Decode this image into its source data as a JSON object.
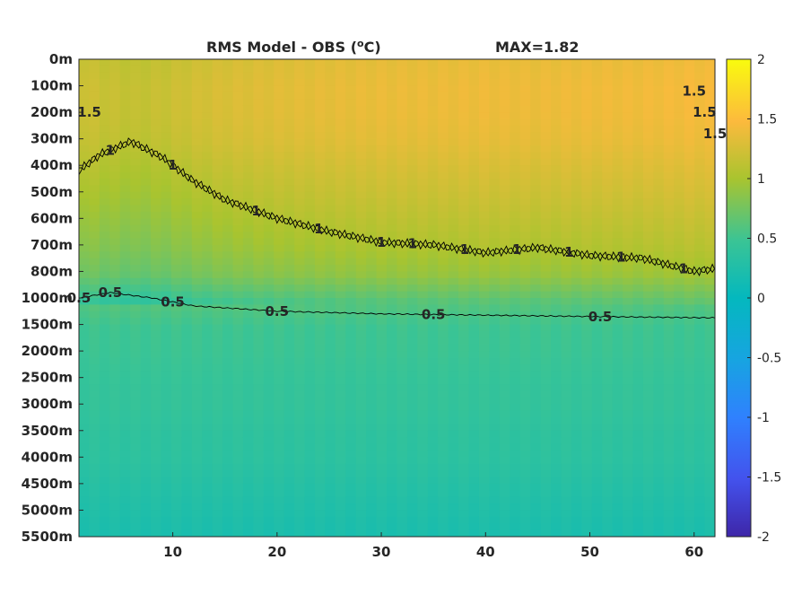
{
  "chart_data": {
    "type": "heatmap",
    "title": "RMS Model - OBS (",
    "title_unit_sup": "o",
    "title_unit_end": "C)",
    "max_label": "MAX=1.82",
    "xlabel": "",
    "ylabel": "",
    "xlim": [
      1,
      62
    ],
    "x_ticks": [
      10,
      20,
      30,
      40,
      50,
      60
    ],
    "y_tick_labels": [
      "0m",
      "100m",
      "200m",
      "300m",
      "400m",
      "500m",
      "600m",
      "700m",
      "800m",
      "1000m",
      "1500m",
      "2000m",
      "2500m",
      "3000m",
      "3500m",
      "4000m",
      "4500m",
      "5000m",
      "5500m"
    ],
    "colorbar": {
      "range": [
        -2,
        2
      ],
      "ticks": [
        "2",
        "1.5",
        "1",
        "0.5",
        "0",
        "-0.5",
        "-1",
        "-1.5",
        "-2"
      ],
      "colormap": "parula"
    },
    "contour_levels": [
      0.5,
      1,
      1.5
    ],
    "contour_labels": [
      {
        "text": "1.5",
        "x": 2,
        "level": 1.5
      },
      {
        "text": "0.5",
        "x": 1,
        "level": 0.5
      },
      {
        "text": "1",
        "x": 4,
        "level": 1
      },
      {
        "text": "1",
        "x": 10,
        "level": 1
      },
      {
        "text": "1",
        "x": 18,
        "level": 1
      },
      {
        "text": "1",
        "x": 24,
        "level": 1
      },
      {
        "text": "1",
        "x": 30,
        "level": 1
      },
      {
        "text": "1",
        "x": 33,
        "level": 1
      },
      {
        "text": "1",
        "x": 38,
        "level": 1
      },
      {
        "text": "1",
        "x": 43,
        "level": 1
      },
      {
        "text": "1",
        "x": 48,
        "level": 1
      },
      {
        "text": "1",
        "x": 53,
        "level": 1
      },
      {
        "text": "1",
        "x": 59,
        "level": 1
      },
      {
        "text": "0.5",
        "x": 4,
        "level": 0.5
      },
      {
        "text": "0.5",
        "x": 10,
        "level": 0.5
      },
      {
        "text": "0.5",
        "x": 20,
        "level": 0.5
      },
      {
        "text": "0.5",
        "x": 35,
        "level": 0.5
      },
      {
        "text": "0.5",
        "x": 51,
        "level": 0.5
      },
      {
        "text": "1.5",
        "x": 60,
        "level": 1.5
      },
      {
        "text": "1.5",
        "x": 61,
        "level": 1.5
      },
      {
        "text": "1.5",
        "x": 62,
        "level": 1.5
      }
    ],
    "depth_profile": {
      "depth_index": [
        0,
        1,
        2,
        3,
        4,
        5,
        6,
        7,
        8,
        9,
        10,
        11,
        12,
        13,
        14,
        15,
        16,
        17,
        18
      ],
      "rms_c": [
        1.35,
        1.38,
        1.37,
        1.33,
        1.25,
        1.18,
        1.1,
        1.02,
        0.9,
        0.62,
        0.5,
        0.48,
        0.44,
        0.42,
        0.38,
        0.36,
        0.3,
        0.25,
        0.2
      ]
    },
    "contour_1_depth_index": [
      {
        "x": 1,
        "d": 4.2
      },
      {
        "x": 3,
        "d": 3.6
      },
      {
        "x": 6,
        "d": 3.1
      },
      {
        "x": 9,
        "d": 3.7
      },
      {
        "x": 12,
        "d": 4.6
      },
      {
        "x": 15,
        "d": 5.3
      },
      {
        "x": 20,
        "d": 6.0
      },
      {
        "x": 25,
        "d": 6.5
      },
      {
        "x": 30,
        "d": 6.9
      },
      {
        "x": 35,
        "d": 7.0
      },
      {
        "x": 40,
        "d": 7.3
      },
      {
        "x": 45,
        "d": 7.1
      },
      {
        "x": 50,
        "d": 7.4
      },
      {
        "x": 55,
        "d": 7.5
      },
      {
        "x": 60,
        "d": 8.0
      },
      {
        "x": 62,
        "d": 7.9
      }
    ],
    "contour_05_depth_index": [
      {
        "x": 1,
        "d": 9.0
      },
      {
        "x": 4,
        "d": 8.8
      },
      {
        "x": 8,
        "d": 9.0
      },
      {
        "x": 12,
        "d": 9.3
      },
      {
        "x": 20,
        "d": 9.5
      },
      {
        "x": 30,
        "d": 9.6
      },
      {
        "x": 40,
        "d": 9.65
      },
      {
        "x": 50,
        "d": 9.7
      },
      {
        "x": 62,
        "d": 9.75
      }
    ]
  }
}
